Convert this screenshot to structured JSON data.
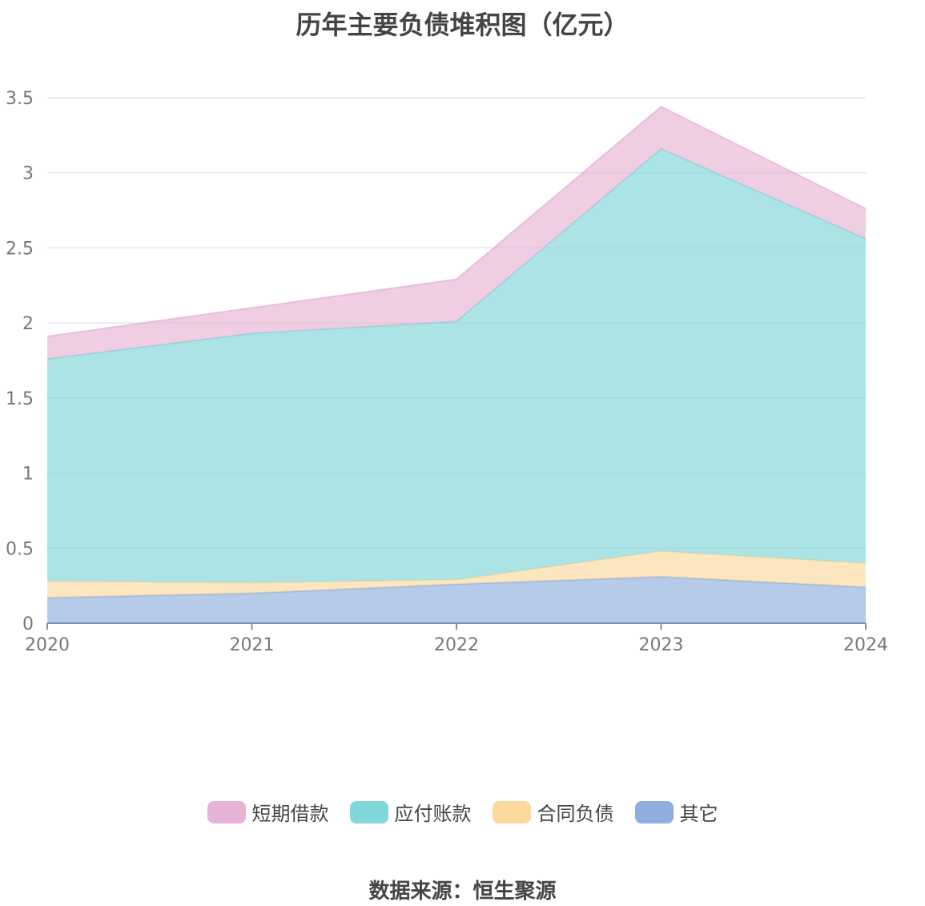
{
  "chart_data": {
    "type": "area",
    "stacked": true,
    "title": "历年主要负债堆积图（亿元）",
    "x": [
      "2020",
      "2021",
      "2022",
      "2023",
      "2024"
    ],
    "ylim": [
      0,
      3.5
    ],
    "y_ticks": [
      "0",
      "0.5",
      "1",
      "1.5",
      "2",
      "2.5",
      "3",
      "3.5"
    ],
    "grid": true,
    "legend_position": "bottom",
    "series": [
      {
        "name": "其它",
        "values": [
          0.17,
          0.2,
          0.26,
          0.31,
          0.24
        ],
        "color": "#8faedf"
      },
      {
        "name": "合同负债",
        "values": [
          0.11,
          0.07,
          0.03,
          0.17,
          0.16
        ],
        "color": "#fbd99d"
      },
      {
        "name": "应付账款",
        "values": [
          1.48,
          1.66,
          1.72,
          2.68,
          2.16
        ],
        "color": "#80d6d8"
      },
      {
        "name": "短期借款",
        "values": [
          0.15,
          0.17,
          0.28,
          0.28,
          0.2
        ],
        "color": "#e6b3d6"
      }
    ]
  },
  "legend_order": [
    "短期借款",
    "应付账款",
    "合同负债",
    "其它"
  ],
  "source": "数据来源：恒生聚源"
}
